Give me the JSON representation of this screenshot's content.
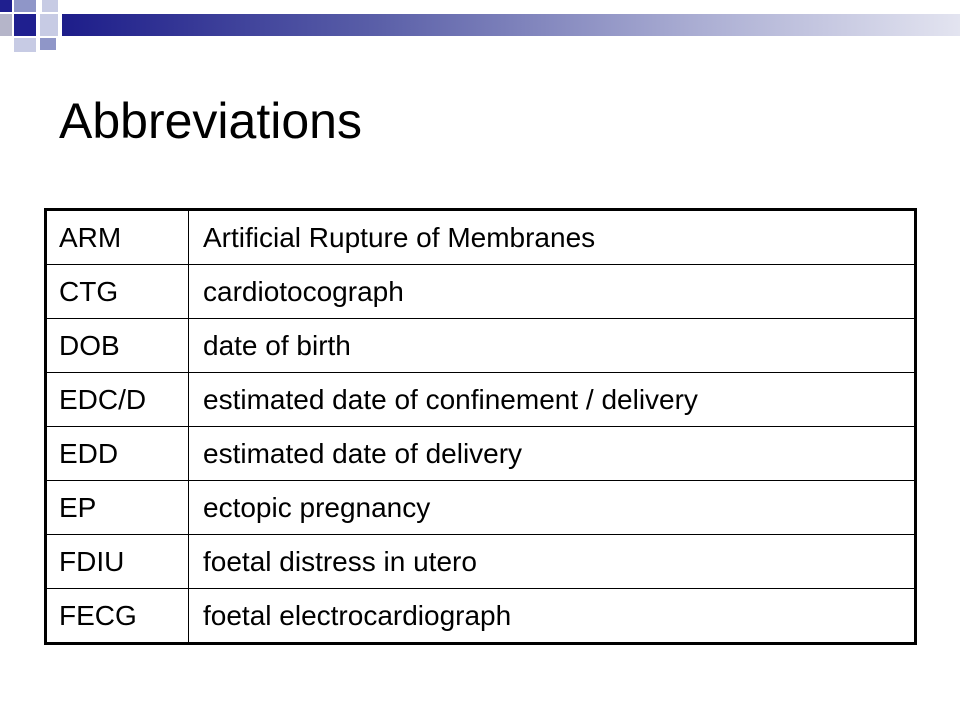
{
  "slide": {
    "title": "Abbreviations",
    "accent_colors": {
      "dark_blue": "#1f1f8f",
      "mid_blue": "#8f96c8",
      "light_blue": "#c7cbe4"
    },
    "rows": [
      {
        "term": "ARM",
        "meaning": "Artificial Rupture of Membranes"
      },
      {
        "term": "CTG",
        "meaning": "cardiotocograph"
      },
      {
        "term": "DOB",
        "meaning": "date of birth"
      },
      {
        "term": "EDC/D",
        "meaning": "estimated date of confinement / delivery"
      },
      {
        "term": "EDD",
        "meaning": "estimated date of delivery"
      },
      {
        "term": "EP",
        "meaning": "ectopic pregnancy"
      },
      {
        "term": "FDIU",
        "meaning": "foetal distress in utero"
      },
      {
        "term": "FECG",
        "meaning": "foetal electrocardiograph"
      }
    ]
  }
}
